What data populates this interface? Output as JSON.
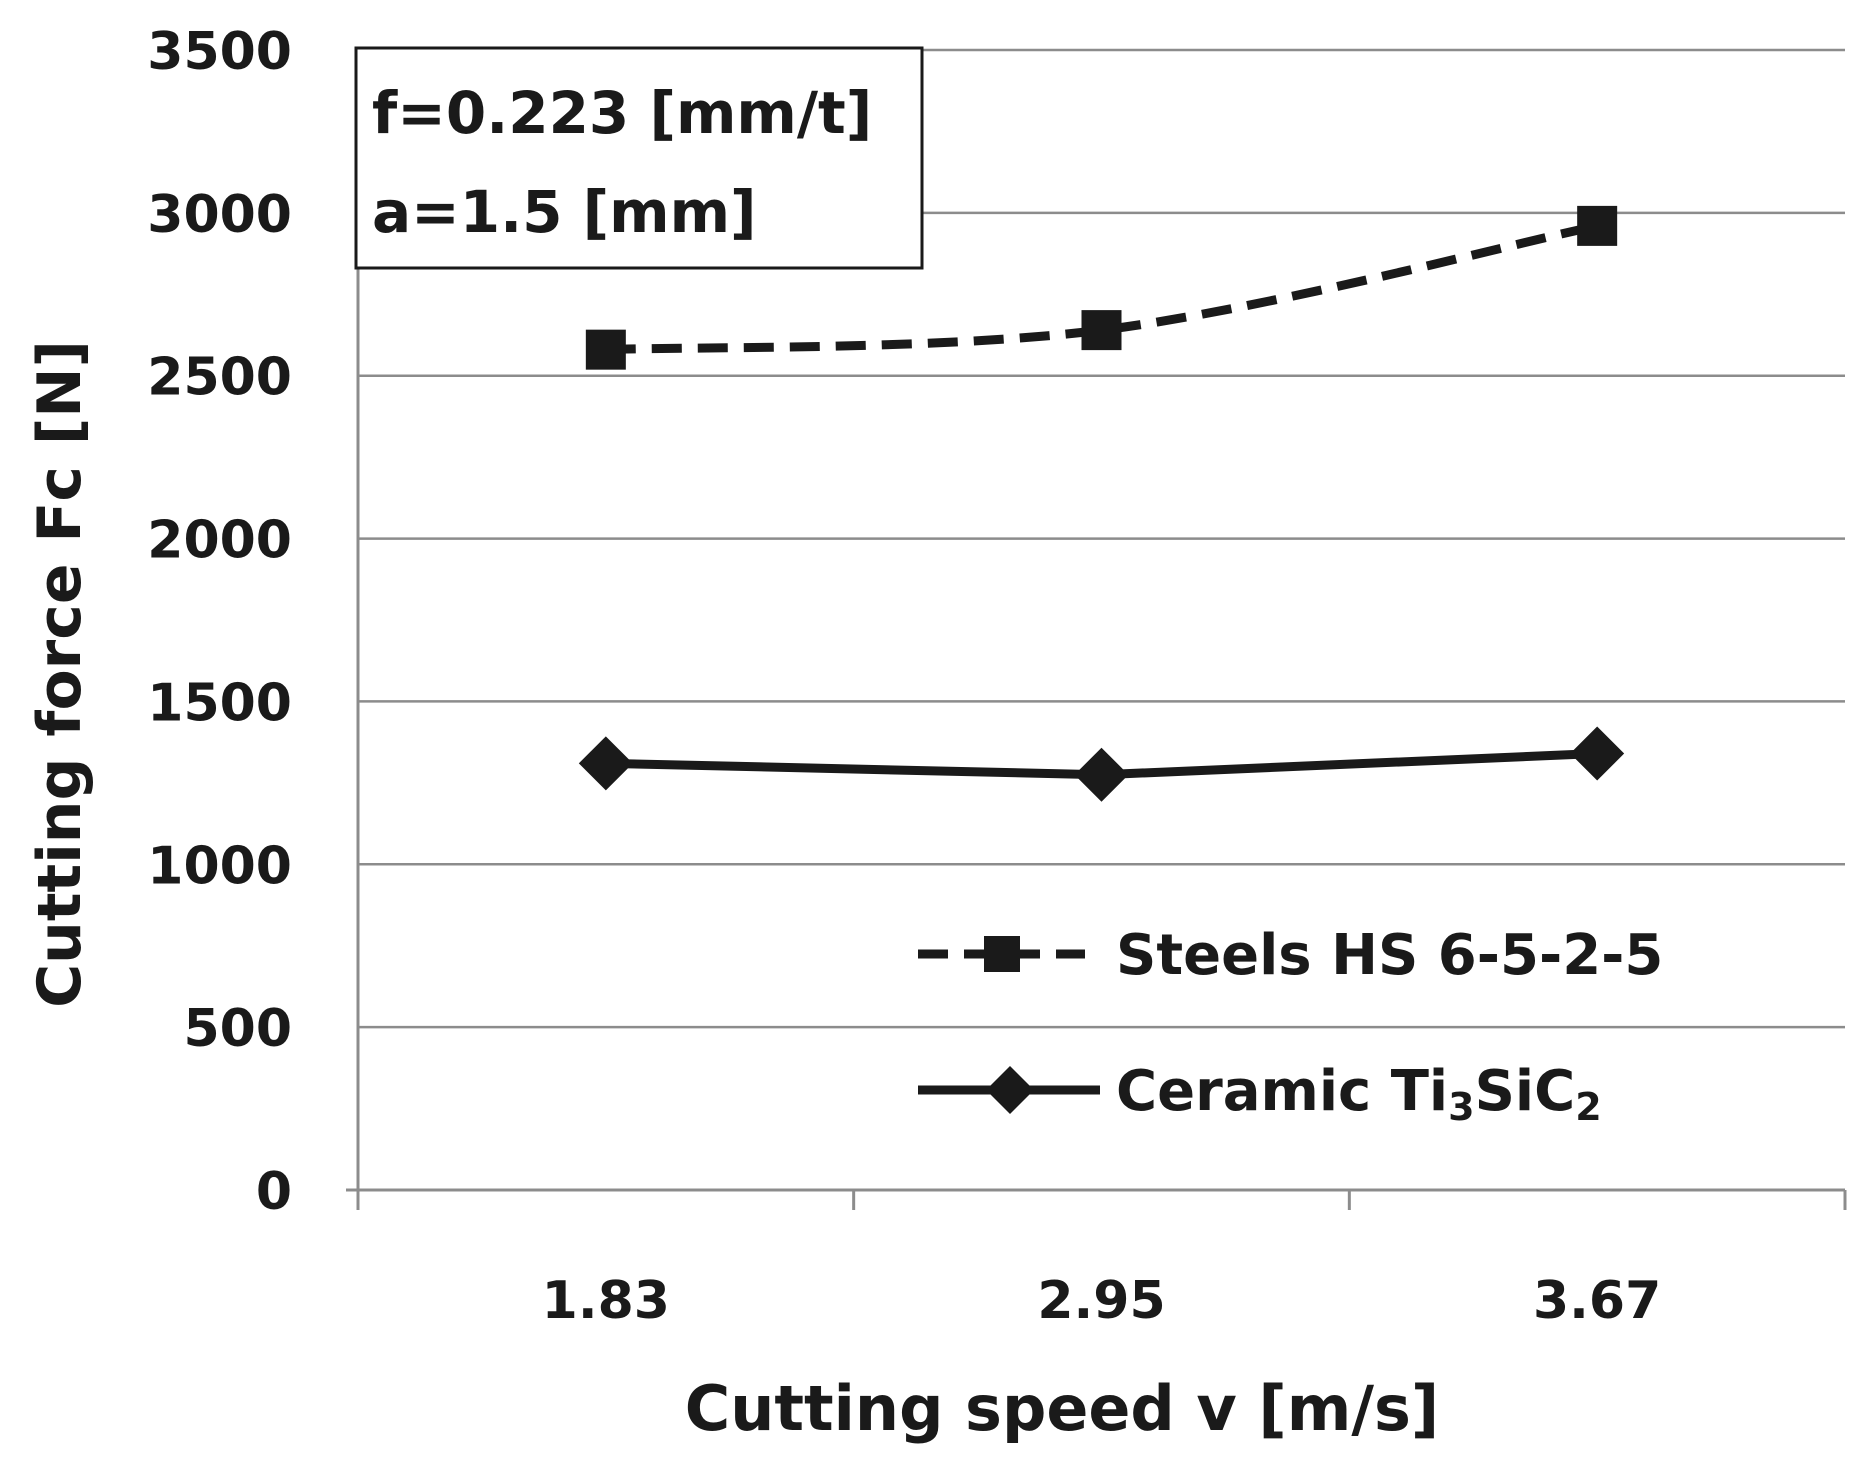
{
  "chart_data": {
    "type": "line",
    "title": "",
    "xlabel": "Cutting speed v [m/s]",
    "ylabel": "Cutting force Fc [N]",
    "categories": [
      "1.83",
      "2.95",
      "3.67"
    ],
    "ylim": [
      0,
      3500
    ],
    "yticks": [
      0,
      500,
      1000,
      1500,
      2000,
      2500,
      3000,
      3500
    ],
    "grid": true,
    "annotation": [
      "f=0.223 [mm/t]",
      "a=1.5 [mm]"
    ],
    "legend_position": "bottom-right",
    "series": [
      {
        "name": "Steels HS 6-5-2-5",
        "values": [
          2580,
          2640,
          2960
        ],
        "line_style": "dashed",
        "marker": "square",
        "smooth": true
      },
      {
        "name": "Ceramic Ti3SiC2",
        "legend_main": "Ceramic Ti",
        "legend_sub1": "3",
        "legend_mid": "SiC",
        "legend_sub2": "2",
        "values": [
          1310,
          1275,
          1340
        ],
        "line_style": "solid",
        "marker": "diamond",
        "smooth": false
      }
    ]
  }
}
